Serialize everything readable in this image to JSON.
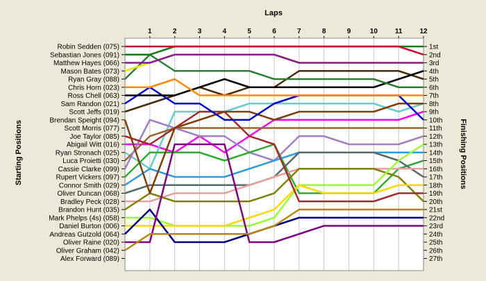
{
  "chart_data": {
    "type": "line",
    "title": "",
    "xlabel": "Laps",
    "ylabel_left": "Starting Positions",
    "ylabel_right": "Finishing Positions",
    "laps": [
      1,
      2,
      3,
      4,
      5,
      6,
      7,
      8,
      9,
      10,
      11,
      12
    ],
    "finishing_labels": [
      "1st",
      "2nd",
      "3rd",
      "4th",
      "5th",
      "6th",
      "7th",
      "8th",
      "9th",
      "10th",
      "11th",
      "12th",
      "13th",
      "14th",
      "15th",
      "16th",
      "17th",
      "18th",
      "19th",
      "20th",
      "21st",
      "22nd",
      "23rd",
      "24th",
      "25th",
      "26th",
      "27th"
    ],
    "grid": true,
    "series": [
      {
        "name": "Robin Sedden (075)",
        "color": "#c8102e",
        "positions": [
          1,
          1,
          1,
          1,
          1,
          1,
          1,
          1,
          1,
          1,
          1,
          1,
          2
        ]
      },
      {
        "name": "Sebastian Jones (091)",
        "color": "#1a7a1a",
        "positions": [
          2,
          2,
          1,
          1,
          1,
          1,
          1,
          1,
          1,
          1,
          1,
          1,
          1
        ]
      },
      {
        "name": "Matthew Hayes (066)",
        "color": "#8b1a8b",
        "positions": [
          3,
          3,
          2,
          2,
          2,
          2,
          2,
          3,
          3,
          3,
          3,
          3,
          3
        ]
      },
      {
        "name": "Mason Bates (073)",
        "color": "#e6e600",
        "positions": [
          4,
          3,
          2,
          2,
          2,
          2,
          2,
          3,
          3,
          3,
          3,
          3,
          3
        ]
      },
      {
        "name": "Ryan Gray (088)",
        "color": "#2e7d32",
        "positions": [
          5,
          2,
          4,
          4,
          4,
          4,
          5,
          5,
          5,
          5,
          5,
          6,
          6
        ]
      },
      {
        "name": "Chris Horn (023)",
        "color": "#ff8c00",
        "positions": [
          6,
          6,
          5,
          7,
          7,
          7,
          7,
          7,
          7,
          7,
          7,
          7,
          7
        ]
      },
      {
        "name": "Ross Chell (063)",
        "color": "#000000",
        "positions": [
          7,
          7,
          7,
          6,
          5,
          6,
          6,
          6,
          6,
          6,
          6,
          5,
          4
        ]
      },
      {
        "name": "Sam Randon (021)",
        "color": "#0000cd",
        "positions": [
          8,
          6,
          8,
          8,
          10,
          10,
          8,
          7,
          7,
          7,
          7,
          7,
          10
        ]
      },
      {
        "name": "Scott Jeffs (019)",
        "color": "#4a2a0a",
        "positions": [
          9,
          8,
          7,
          6,
          7,
          6,
          6,
          4,
          4,
          4,
          4,
          4,
          5
        ]
      },
      {
        "name": "Brendan Speight (094)",
        "color": "#7f3f00",
        "positions": [
          10,
          19,
          11,
          10,
          9,
          9,
          10,
          9,
          9,
          9,
          9,
          8,
          8
        ]
      }
    ]
  },
  "driver_labels": [
    "Robin Sedden (075)",
    "Sebastian Jones (091)",
    "Matthew Hayes (066)",
    "Mason Bates (073)",
    "Ryan Gray (088)",
    "Chris Horn (023)",
    "Ross Chell (063)",
    "Sam Randon (021)",
    "Scott Jeffs (019)",
    "Brendan Speight (094)",
    "Scott Morris (077)",
    "Joe Taylor (085)",
    "Abigail Witt (016)",
    "Ryan Stronach (025)",
    "Luca Proietti (030)",
    "Cassie Clarke (099)",
    "Rupert Vickers (097)",
    "Connor Smith (029)",
    "Oliver Duncan (068)",
    "Bradley Peck (028)",
    "Brandon Hunt (035)",
    "Mark Phelps (4s) (058)",
    "Daniel Burton (006)",
    "Andreas Gutzold (064)",
    "Oliver Raine (020)",
    "Oliver Graham (042)",
    "Alex Forward (089)"
  ],
  "extra_lines": [
    {
      "color": "#ff00ff",
      "positions": [
        13,
        13,
        14,
        12,
        14,
        12,
        10,
        10,
        10,
        10,
        10,
        10,
        9
      ]
    },
    {
      "color": "#66cccc",
      "positions": [
        14,
        16,
        9,
        9,
        9,
        8,
        8,
        8,
        8,
        8,
        8,
        9,
        8
      ]
    },
    {
      "color": "#996633",
      "positions": [
        15,
        12,
        11,
        11,
        11,
        11,
        11,
        11,
        11,
        11,
        11,
        11,
        11
      ]
    },
    {
      "color": "#a080c0",
      "positions": [
        16,
        10,
        11,
        12,
        12,
        14,
        15,
        12,
        12,
        13,
        13,
        13,
        12
      ]
    },
    {
      "color": "#33aa33",
      "positions": [
        17,
        14,
        14,
        14,
        15,
        14,
        13,
        19,
        19,
        19,
        19,
        16,
        15
      ]
    },
    {
      "color": "#3399dd",
      "positions": [
        18,
        16,
        17,
        17,
        17,
        16,
        15,
        14,
        14,
        14,
        14,
        14,
        14
      ]
    },
    {
      "color": "#556b6b",
      "positions": [
        19,
        18,
        18,
        18,
        18,
        18,
        17,
        14,
        14,
        14,
        14,
        15,
        17
      ]
    },
    {
      "color": "#e8a0a0",
      "positions": [
        20,
        20,
        19,
        19,
        19,
        18,
        17,
        16,
        16,
        16,
        16,
        16,
        16
      ]
    },
    {
      "color": "#808000",
      "positions": [
        21,
        19,
        20,
        20,
        20,
        20,
        19,
        16,
        16,
        16,
        16,
        17,
        20
      ]
    },
    {
      "color": "#99ff33",
      "positions": [
        22,
        22,
        23,
        23,
        23,
        23,
        22,
        18,
        18,
        18,
        18,
        15,
        13
      ]
    },
    {
      "color": "#ffd700",
      "positions": [
        23,
        23,
        23,
        23,
        23,
        22,
        21,
        18,
        19,
        19,
        19,
        18,
        18
      ]
    },
    {
      "color": "#000080",
      "positions": [
        24,
        21,
        25,
        25,
        25,
        24,
        23,
        22,
        22,
        22,
        22,
        22,
        22
      ]
    },
    {
      "color": "#800080",
      "positions": [
        25,
        25,
        13,
        13,
        13,
        25,
        25,
        24,
        23,
        23,
        23,
        23,
        23
      ]
    },
    {
      "color": "#b8860b",
      "positions": [
        26,
        24,
        24,
        24,
        24,
        24,
        23,
        21,
        21,
        21,
        21,
        21,
        21
      ]
    },
    {
      "color": "#a52a2a",
      "positions": [
        12,
        13,
        11,
        9,
        9,
        12,
        13,
        20,
        20,
        20,
        20,
        19,
        19
      ]
    }
  ]
}
